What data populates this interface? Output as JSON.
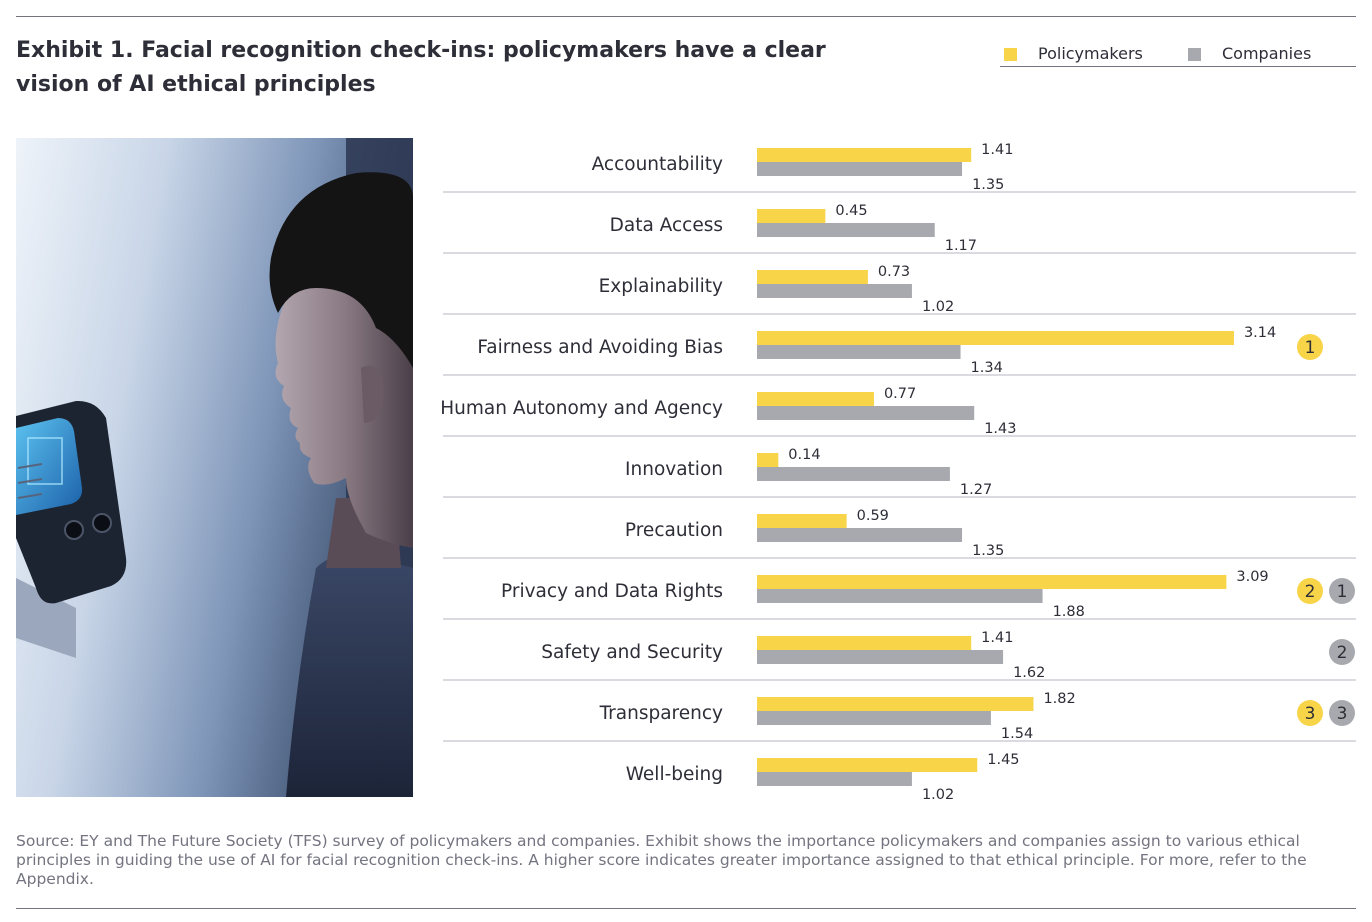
{
  "title_lines": [
    "Exhibit 1. Facial recognition check-ins: policymakers have a clear",
    "vision of AI ethical principles"
  ],
  "colors": {
    "policymakers": "#f7d448",
    "companies": "#a7a9ae",
    "text": "#2e2e38",
    "rule": "#747480",
    "source_text": "#747480"
  },
  "legend": [
    {
      "label": "Policymakers",
      "color": "#f7d448"
    },
    {
      "label": "Companies",
      "color": "#a7a9ae"
    }
  ],
  "photo": {
    "description_icon": "person-facial-recognition-photo"
  },
  "chart_data": {
    "type": "bar",
    "orientation": "horizontal",
    "categories": [
      "Accountability",
      "Data Access",
      "Explainability",
      "Fairness and Avoiding Bias",
      "Human Autonomy and Agency",
      "Innovation",
      "Precaution",
      "Privacy and Data Rights",
      "Safety and Security",
      "Transparency",
      "Well-being"
    ],
    "series": [
      {
        "name": "Policymakers",
        "color": "#f7d448",
        "values": [
          1.41,
          0.45,
          0.73,
          3.14,
          0.77,
          0.14,
          0.59,
          3.09,
          1.41,
          1.82,
          1.45
        ]
      },
      {
        "name": "Companies",
        "color": "#a7a9ae",
        "values": [
          1.35,
          1.17,
          1.02,
          1.34,
          1.43,
          1.27,
          1.35,
          1.88,
          1.62,
          1.54,
          1.02
        ]
      }
    ],
    "value_labels": {
      "Policymakers": [
        "1.41",
        "0.45",
        "0.73",
        "3.14",
        "0.77",
        "0.14",
        "0.59",
        "3.09",
        "1.41",
        "1.82",
        "1.45"
      ],
      "Companies": [
        "1.35",
        "1.17",
        "1.02",
        "1.34",
        "1.43",
        "1.27",
        "1.35",
        "1.88",
        "1.62",
        "1.54",
        "1.02"
      ]
    },
    "xlim": [
      0,
      3.5
    ],
    "grid": false,
    "legend_position": "top-right",
    "rank_badges": [
      {
        "category": "Fairness and Avoiding Bias",
        "series": "Policymakers",
        "rank": "1"
      },
      {
        "category": "Privacy and Data Rights",
        "series": "Policymakers",
        "rank": "2"
      },
      {
        "category": "Privacy and Data Rights",
        "series": "Companies",
        "rank": "1"
      },
      {
        "category": "Safety and Security",
        "series": "Companies",
        "rank": "2"
      },
      {
        "category": "Transparency",
        "series": "Policymakers",
        "rank": "3"
      },
      {
        "category": "Transparency",
        "series": "Companies",
        "rank": "3"
      }
    ]
  },
  "source_text": "Source: EY and The Future Society (TFS) survey of policymakers and companies. Exhibit shows the importance policymakers and companies assign to various ethical principles in guiding the use of AI for facial recognition check-ins. A higher score indicates greater importance assigned to that ethical principle. For more, refer to the Appendix."
}
